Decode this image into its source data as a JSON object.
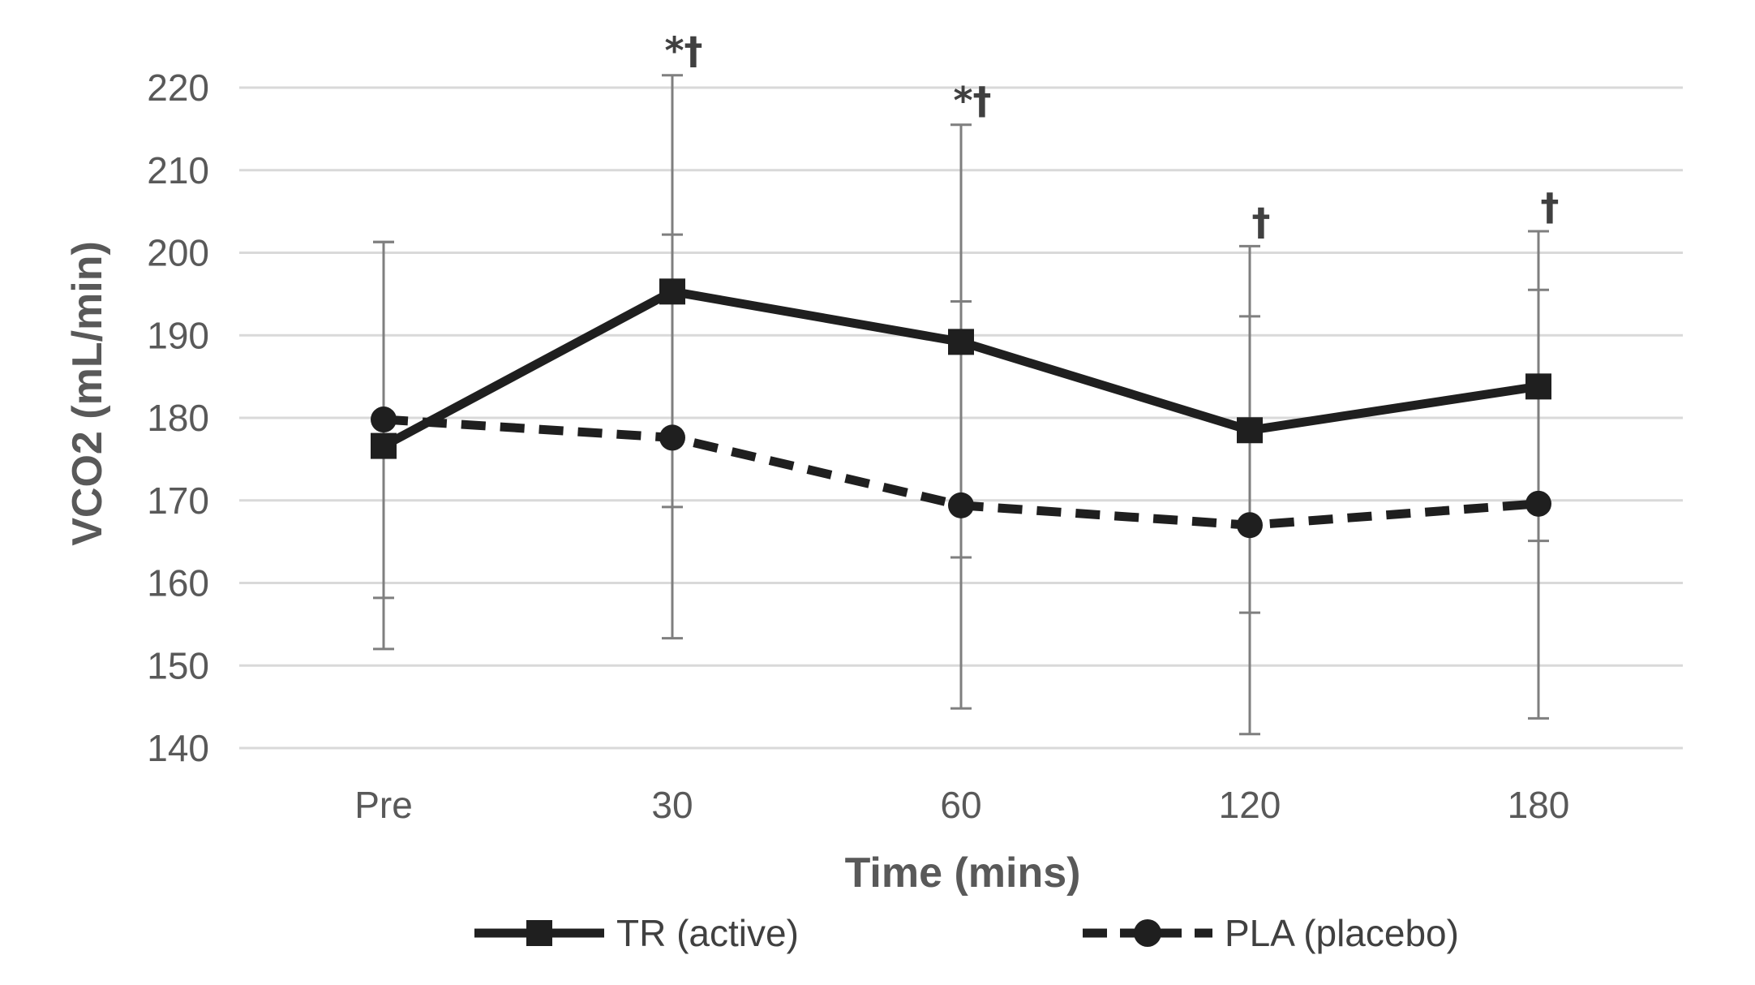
{
  "chart_data": {
    "type": "line",
    "xlabel": "Time (mins)",
    "ylabel": "VCO2 (mL/min)",
    "categories": [
      "Pre",
      "30",
      "60",
      "120",
      "180"
    ],
    "ylim": [
      140,
      220
    ],
    "yticks": [
      140,
      150,
      160,
      170,
      180,
      190,
      200,
      210,
      220
    ],
    "grid": true,
    "legend_position": "bottom",
    "series": [
      {
        "name": "TR (active)",
        "style": "solid",
        "marker": "square",
        "color": "#1f1f1f",
        "values": [
          176.6,
          195.3,
          189.2,
          178.5,
          183.8
        ],
        "error_low": [
          152.0,
          153.3,
          144.8,
          141.7,
          143.6
        ],
        "error_high": [
          201.3,
          221.5,
          215.5,
          200.8,
          202.6
        ]
      },
      {
        "name": "PLA (placebo)",
        "style": "dashed",
        "marker": "circle",
        "color": "#1f1f1f",
        "values": [
          179.8,
          177.6,
          169.4,
          167.0,
          169.6
        ],
        "error_low": [
          158.2,
          169.2,
          163.1,
          156.4,
          165.1
        ],
        "error_high": [
          201.3,
          202.2,
          194.1,
          192.3,
          195.5
        ]
      }
    ],
    "annotations": [
      {
        "category": "30",
        "text": "*†"
      },
      {
        "category": "60",
        "text": "*†"
      },
      {
        "category": "120",
        "text": "†"
      },
      {
        "category": "180",
        "text": "†"
      }
    ]
  }
}
